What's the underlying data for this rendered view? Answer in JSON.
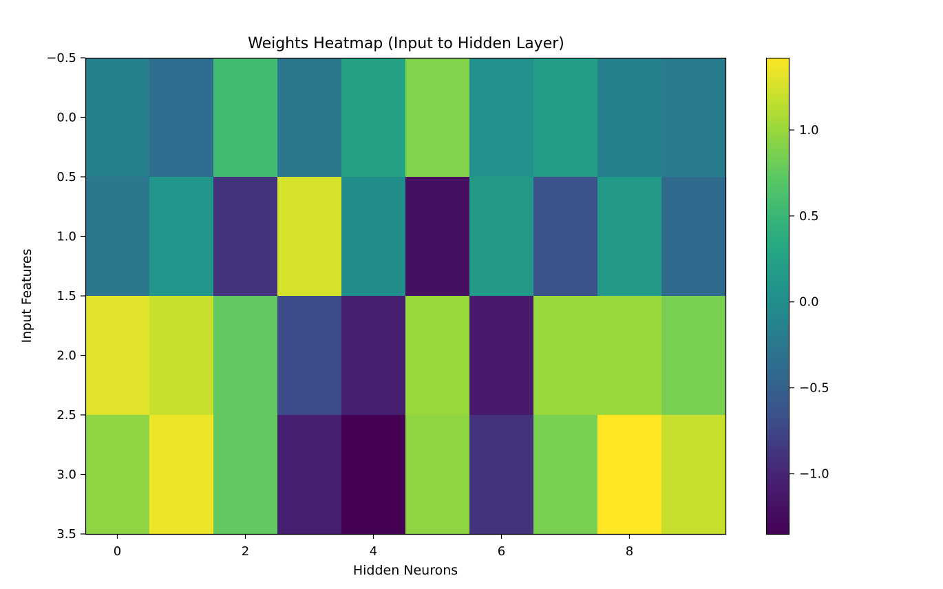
{
  "chart_data": {
    "type": "heatmap",
    "title": "Weights Heatmap (Input to Hidden Layer)",
    "xlabel": "Hidden Neurons",
    "ylabel": "Input Features",
    "xlim": [
      -0.5,
      9.5
    ],
    "ylim": [
      3.5,
      -0.5
    ],
    "x_ticks": [
      0,
      2,
      4,
      6,
      8
    ],
    "x_tick_labels": [
      "0",
      "2",
      "4",
      "6",
      "8"
    ],
    "y_ticks": [
      -0.5,
      0.0,
      0.5,
      1.0,
      1.5,
      2.0,
      2.5,
      3.0,
      3.5
    ],
    "y_tick_labels": [
      "−0.5",
      "0.0",
      "0.5",
      "1.0",
      "1.5",
      "2.0",
      "2.5",
      "3.0",
      "3.5"
    ],
    "colormap": "viridis",
    "colorbar": {
      "vmin": -1.35,
      "vmax": 1.42,
      "ticks": [
        -1.0,
        -0.5,
        0.0,
        0.5,
        1.0
      ],
      "tick_labels": [
        "−1.0",
        "−0.5",
        "0.0",
        "0.5",
        "1.0"
      ]
    },
    "values": [
      [
        -0.15,
        -0.35,
        0.55,
        -0.25,
        0.25,
        0.9,
        0.05,
        0.2,
        -0.15,
        -0.2
      ],
      [
        -0.25,
        0.1,
        -0.9,
        1.25,
        0.0,
        -1.2,
        0.15,
        -0.65,
        0.15,
        -0.4
      ],
      [
        1.3,
        1.2,
        0.75,
        -0.7,
        -1.05,
        1.0,
        -1.1,
        1.0,
        1.0,
        0.85
      ],
      [
        0.95,
        1.35,
        0.75,
        -1.05,
        -1.35,
        0.95,
        -0.9,
        0.85,
        1.42,
        1.2
      ]
    ]
  }
}
